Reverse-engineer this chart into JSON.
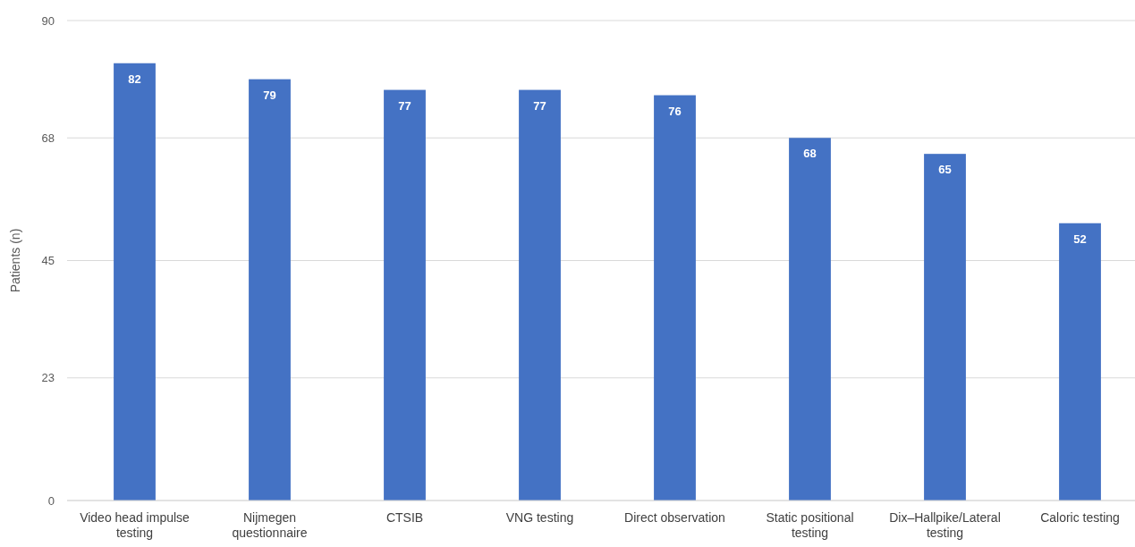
{
  "chart_data": {
    "type": "bar",
    "ylabel": "Patients (n)",
    "categories": [
      "Video head impulse testing",
      "Nijmegen questionnaire",
      "CTSIB",
      "VNG testing",
      "Direct observation",
      "Static positional testing",
      "Dix–Hallpike/Lateral testing",
      "Caloric testing"
    ],
    "values": [
      82,
      79,
      77,
      77,
      76,
      68,
      65,
      52
    ],
    "color": "#4472c4",
    "ylim": [
      0,
      90
    ],
    "yticks": [
      0,
      23,
      45,
      68,
      90
    ],
    "grid": "y",
    "data_labels": true
  }
}
